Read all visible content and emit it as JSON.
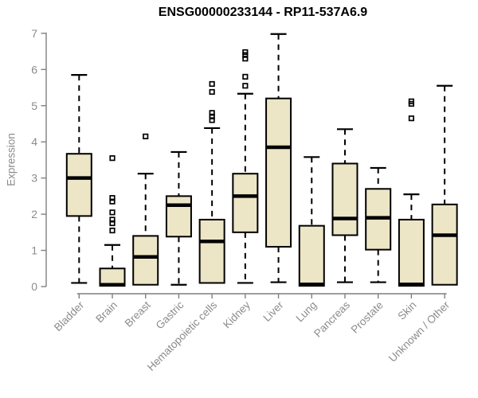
{
  "colors": {
    "background": "#ffffff",
    "box_fill": "#ece5c6",
    "box_border": "#000000",
    "median": "#000000",
    "whisker": "#000000",
    "outlier": "#000000",
    "axis_line": "#7f7f7f",
    "tick_label": "#8b8b8b",
    "title": "#000000"
  },
  "chart_data": {
    "type": "boxplot",
    "title": "ENSG00000233144 - RP11-537A6.9",
    "xlabel": "",
    "ylabel": "Expression",
    "ylim": [
      0,
      7
    ],
    "yticks": [
      0,
      1,
      2,
      3,
      4,
      5,
      6,
      7
    ],
    "grid": false,
    "legend": "none",
    "categories": [
      "Bladder",
      "Brain",
      "Breast",
      "Gastric",
      "Hematopoietic cells",
      "Kidney",
      "Liver",
      "Lung",
      "Pancreas",
      "Prostate",
      "Skin",
      "Unknown / Other"
    ],
    "boxes": [
      {
        "label": "Bladder",
        "whisker_low": 0.1,
        "q1": 1.95,
        "median": 3.0,
        "q3": 3.67,
        "whisker_high": 5.85,
        "outliers": []
      },
      {
        "label": "Brain",
        "whisker_low": 0.02,
        "q1": 0.02,
        "median": 0.05,
        "q3": 0.5,
        "whisker_high": 1.15,
        "outliers": [
          1.55,
          1.75,
          1.85,
          2.05,
          2.35,
          2.45,
          3.55
        ]
      },
      {
        "label": "Breast",
        "whisker_low": 0.05,
        "q1": 0.05,
        "median": 0.82,
        "q3": 1.4,
        "whisker_high": 3.12,
        "outliers": [
          4.15
        ]
      },
      {
        "label": "Gastric",
        "whisker_low": 0.05,
        "q1": 1.38,
        "median": 2.25,
        "q3": 2.5,
        "whisker_high": 3.72,
        "outliers": []
      },
      {
        "label": "Hematopoietic cells",
        "whisker_low": 0.1,
        "q1": 0.1,
        "median": 1.25,
        "q3": 1.85,
        "whisker_high": 4.38,
        "outliers": [
          4.6,
          4.7,
          4.8,
          5.38,
          5.6
        ]
      },
      {
        "label": "Kidney",
        "whisker_low": 0.1,
        "q1": 1.5,
        "median": 2.5,
        "q3": 3.12,
        "whisker_high": 5.33,
        "outliers": [
          5.55,
          5.8,
          6.3,
          6.4,
          6.48
        ]
      },
      {
        "label": "Liver",
        "whisker_low": 0.12,
        "q1": 1.1,
        "median": 3.85,
        "q3": 5.2,
        "whisker_high": 6.98,
        "outliers": []
      },
      {
        "label": "Lung",
        "whisker_low": 0.02,
        "q1": 0.02,
        "median": 0.06,
        "q3": 1.68,
        "whisker_high": 3.58,
        "outliers": []
      },
      {
        "label": "Pancreas",
        "whisker_low": 0.12,
        "q1": 1.42,
        "median": 1.88,
        "q3": 3.4,
        "whisker_high": 4.35,
        "outliers": []
      },
      {
        "label": "Prostate",
        "whisker_low": 0.12,
        "q1": 1.02,
        "median": 1.9,
        "q3": 2.7,
        "whisker_high": 3.28,
        "outliers": []
      },
      {
        "label": "Skin",
        "whisker_low": 0.02,
        "q1": 0.02,
        "median": 0.06,
        "q3": 1.85,
        "whisker_high": 2.55,
        "outliers": [
          4.65,
          5.05,
          5.12
        ]
      },
      {
        "label": "Unknown / Other",
        "whisker_low": 0.05,
        "q1": 0.05,
        "median": 1.42,
        "q3": 2.27,
        "whisker_high": 5.55,
        "outliers": []
      }
    ]
  }
}
